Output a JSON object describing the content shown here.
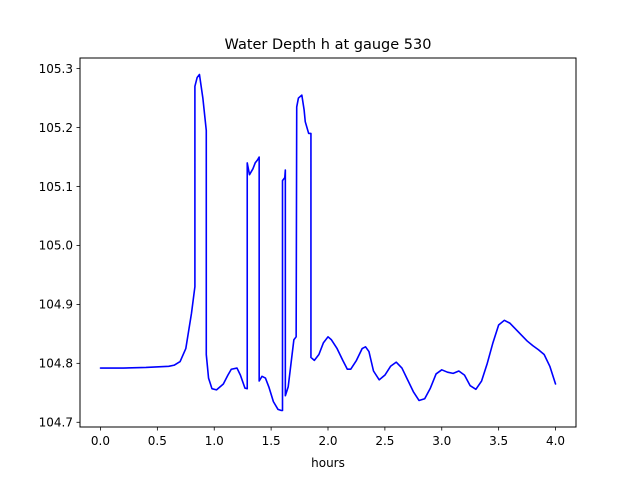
{
  "chart_data": {
    "type": "line",
    "title": "Water Depth h at gauge 530",
    "xlabel": "hours",
    "ylabel": "",
    "xlim": [
      -0.18,
      4.18
    ],
    "ylim": [
      104.692,
      105.318
    ],
    "xticks": [
      0.0,
      0.5,
      1.0,
      1.5,
      2.0,
      2.5,
      3.0,
      3.5,
      4.0
    ],
    "xtick_labels": [
      "0.0",
      "0.5",
      "1.0",
      "1.5",
      "2.0",
      "2.5",
      "3.0",
      "3.5",
      "4.0"
    ],
    "yticks": [
      104.7,
      104.8,
      104.9,
      105.0,
      105.1,
      105.2,
      105.3
    ],
    "ytick_labels": [
      "104.7",
      "104.8",
      "104.9",
      "105.0",
      "105.1",
      "105.2",
      "105.3"
    ],
    "grid": false,
    "line_color": "#0000ff",
    "series": [
      {
        "name": "",
        "x": [
          0.0,
          0.2,
          0.4,
          0.6,
          0.65,
          0.7,
          0.75,
          0.8,
          0.83,
          0.83,
          0.85,
          0.87,
          0.9,
          0.93,
          0.93,
          0.95,
          0.98,
          1.02,
          1.08,
          1.12,
          1.15,
          1.2,
          1.23,
          1.27,
          1.29,
          1.29,
          1.31,
          1.34,
          1.36,
          1.38,
          1.395,
          1.395,
          1.42,
          1.45,
          1.48,
          1.52,
          1.56,
          1.59,
          1.6,
          1.6,
          1.62,
          1.625,
          1.625,
          1.65,
          1.7,
          1.72,
          1.725,
          1.74,
          1.77,
          1.79,
          1.8,
          1.83,
          1.85,
          1.85,
          1.88,
          1.92,
          1.96,
          2.0,
          2.03,
          2.08,
          2.13,
          2.17,
          2.2,
          2.25,
          2.3,
          2.33,
          2.36,
          2.4,
          2.45,
          2.5,
          2.55,
          2.6,
          2.65,
          2.7,
          2.75,
          2.8,
          2.85,
          2.9,
          2.95,
          3.0,
          3.05,
          3.1,
          3.15,
          3.2,
          3.25,
          3.3,
          3.35,
          3.4,
          3.45,
          3.5,
          3.55,
          3.6,
          3.65,
          3.7,
          3.75,
          3.8,
          3.85,
          3.9,
          3.95,
          4.0
        ],
        "values": [
          104.792,
          104.792,
          104.793,
          104.795,
          104.797,
          104.803,
          104.825,
          104.885,
          104.93,
          105.27,
          105.285,
          105.29,
          105.25,
          105.195,
          104.815,
          104.775,
          104.757,
          104.755,
          104.765,
          104.78,
          104.79,
          104.792,
          104.78,
          104.758,
          104.757,
          105.14,
          105.12,
          105.13,
          105.14,
          105.145,
          105.15,
          104.77,
          104.778,
          104.775,
          104.76,
          104.735,
          104.722,
          104.72,
          104.72,
          105.11,
          105.115,
          105.128,
          104.745,
          104.76,
          104.84,
          104.845,
          105.235,
          105.25,
          105.255,
          105.23,
          105.21,
          105.19,
          105.19,
          104.81,
          104.805,
          104.815,
          104.835,
          104.845,
          104.84,
          104.825,
          104.805,
          104.79,
          104.79,
          104.805,
          104.825,
          104.828,
          104.82,
          104.787,
          104.772,
          104.78,
          104.795,
          104.802,
          104.792,
          104.772,
          104.752,
          104.737,
          104.74,
          104.758,
          104.782,
          104.789,
          104.785,
          104.783,
          104.787,
          104.78,
          104.762,
          104.756,
          104.77,
          104.8,
          104.835,
          104.865,
          104.873,
          104.868,
          104.858,
          104.848,
          104.838,
          104.83,
          104.823,
          104.815,
          104.795,
          104.765
        ]
      }
    ]
  }
}
